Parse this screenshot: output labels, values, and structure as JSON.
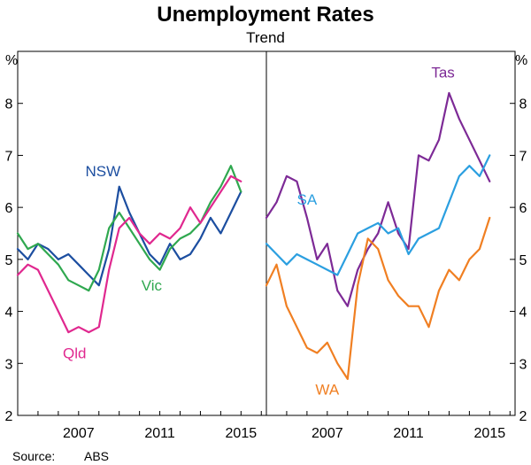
{
  "chart_data": {
    "type": "line",
    "title": "Unemployment Rates",
    "subtitle": "Trend",
    "source_label": "Source:",
    "source": "ABS",
    "ylabel": "%",
    "ylim": [
      2,
      9
    ],
    "yticks": [
      "2",
      "3",
      "4",
      "5",
      "6",
      "7",
      "8"
    ],
    "xlim": [
      2004.0,
      2016.25
    ],
    "xticks": [
      "2007",
      "2011",
      "2015"
    ],
    "panels": [
      {
        "name": "left-panel",
        "series": [
          {
            "name": "NSW",
            "color": "#1c4ea0",
            "label_x": 2008.2,
            "label_y": 6.6,
            "x": [
              2004.0,
              2004.5,
              2005.0,
              2005.5,
              2006.0,
              2006.5,
              2007.0,
              2007.5,
              2008.0,
              2008.5,
              2009.0,
              2009.5,
              2010.0,
              2010.5,
              2011.0,
              2011.5,
              2012.0,
              2012.5,
              2013.0,
              2013.5,
              2014.0,
              2014.5,
              2015.0
            ],
            "y": [
              5.2,
              5.0,
              5.3,
              5.2,
              5.0,
              5.1,
              4.9,
              4.7,
              4.5,
              5.2,
              6.4,
              5.9,
              5.5,
              5.1,
              4.9,
              5.3,
              5.0,
              5.1,
              5.4,
              5.8,
              5.5,
              5.9,
              6.3
            ]
          },
          {
            "name": "Vic",
            "color": "#2fa84f",
            "label_x": 2010.6,
            "label_y": 4.4,
            "x": [
              2004.0,
              2004.5,
              2005.0,
              2005.5,
              2006.0,
              2006.5,
              2007.0,
              2007.5,
              2008.0,
              2008.5,
              2009.0,
              2009.5,
              2010.0,
              2010.5,
              2011.0,
              2011.5,
              2012.0,
              2012.5,
              2013.0,
              2013.5,
              2014.0,
              2014.5,
              2015.0
            ],
            "y": [
              5.5,
              5.2,
              5.3,
              5.1,
              4.9,
              4.6,
              4.5,
              4.4,
              4.8,
              5.6,
              5.9,
              5.6,
              5.3,
              5.0,
              4.8,
              5.2,
              5.4,
              5.5,
              5.7,
              6.1,
              6.4,
              6.8,
              6.3
            ]
          },
          {
            "name": "Qld",
            "color": "#e0288f",
            "label_x": 2006.8,
            "label_y": 3.1,
            "x": [
              2004.0,
              2004.5,
              2005.0,
              2005.5,
              2006.0,
              2006.5,
              2007.0,
              2007.5,
              2008.0,
              2008.5,
              2009.0,
              2009.5,
              2010.0,
              2010.5,
              2011.0,
              2011.5,
              2012.0,
              2012.5,
              2013.0,
              2013.5,
              2014.0,
              2014.5,
              2015.0
            ],
            "y": [
              4.7,
              4.9,
              4.8,
              4.4,
              4.0,
              3.6,
              3.7,
              3.6,
              3.7,
              4.8,
              5.6,
              5.8,
              5.5,
              5.3,
              5.5,
              5.4,
              5.6,
              6.0,
              5.7,
              6.0,
              6.3,
              6.6,
              6.5
            ]
          }
        ]
      },
      {
        "name": "right-panel",
        "series": [
          {
            "name": "Tas",
            "color": "#7d2a96",
            "label_x": 2012.7,
            "label_y": 8.5,
            "x": [
              2004.0,
              2004.5,
              2005.0,
              2005.5,
              2006.0,
              2006.5,
              2007.0,
              2007.5,
              2008.0,
              2008.5,
              2009.0,
              2009.5,
              2010.0,
              2010.5,
              2011.0,
              2011.5,
              2012.0,
              2012.5,
              2013.0,
              2013.5,
              2014.0,
              2014.5,
              2015.0
            ],
            "y": [
              5.8,
              6.1,
              6.6,
              6.5,
              5.8,
              5.0,
              5.3,
              4.4,
              4.1,
              4.8,
              5.2,
              5.5,
              6.1,
              5.5,
              5.2,
              7.0,
              6.9,
              7.3,
              8.2,
              7.7,
              7.3,
              6.9,
              6.5
            ]
          },
          {
            "name": "SA",
            "color": "#2b9fe0",
            "label_x": 2006.0,
            "label_y": 6.05,
            "x": [
              2004.0,
              2004.5,
              2005.0,
              2005.5,
              2006.0,
              2006.5,
              2007.0,
              2007.5,
              2008.0,
              2008.5,
              2009.0,
              2009.5,
              2010.0,
              2010.5,
              2011.0,
              2011.5,
              2012.0,
              2012.5,
              2013.0,
              2013.5,
              2014.0,
              2014.5,
              2015.0
            ],
            "y": [
              5.3,
              5.1,
              4.9,
              5.1,
              5.0,
              4.9,
              4.8,
              4.7,
              5.1,
              5.5,
              5.6,
              5.7,
              5.5,
              5.6,
              5.1,
              5.4,
              5.5,
              5.6,
              6.1,
              6.6,
              6.8,
              6.6,
              7.0
            ]
          },
          {
            "name": "WA",
            "color": "#f07f22",
            "label_x": 2007.0,
            "label_y": 2.4,
            "x": [
              2004.0,
              2004.5,
              2005.0,
              2005.5,
              2006.0,
              2006.5,
              2007.0,
              2007.5,
              2008.0,
              2008.5,
              2009.0,
              2009.5,
              2010.0,
              2010.5,
              2011.0,
              2011.5,
              2012.0,
              2012.5,
              2013.0,
              2013.5,
              2014.0,
              2014.5,
              2015.0
            ],
            "y": [
              4.5,
              4.9,
              4.1,
              3.7,
              3.3,
              3.2,
              3.4,
              3.0,
              2.7,
              4.5,
              5.4,
              5.2,
              4.6,
              4.3,
              4.1,
              4.1,
              3.7,
              4.4,
              4.8,
              4.6,
              5.0,
              5.2,
              5.8
            ]
          }
        ]
      }
    ]
  }
}
